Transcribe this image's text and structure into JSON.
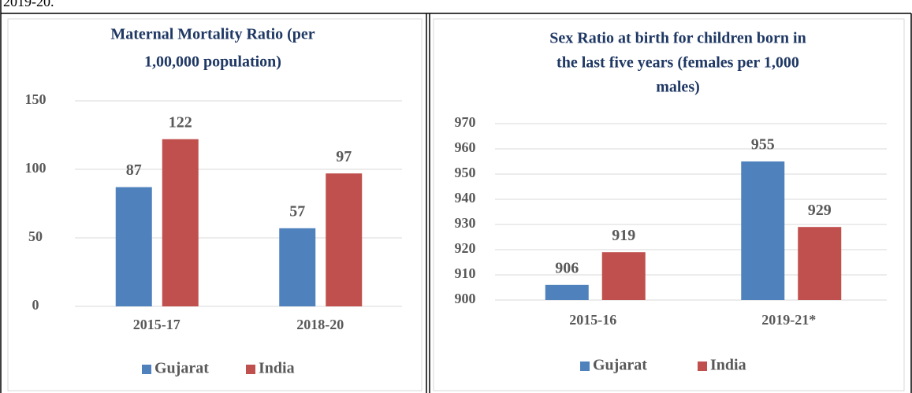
{
  "caption": "2019-20.",
  "chart_data": [
    {
      "type": "bar",
      "title": [
        "Maternal Mortality Ratio (per",
        "1,00,000 population)"
      ],
      "categories": [
        "2015-17",
        "2018-20"
      ],
      "series": [
        {
          "name": "Gujarat",
          "color": "#4f81bd",
          "values": [
            87,
            57
          ]
        },
        {
          "name": "India",
          "color": "#c0504d",
          "values": [
            122,
            97
          ]
        }
      ],
      "ylim": [
        0,
        150
      ],
      "yticks": [
        0,
        50,
        100,
        150
      ],
      "grid": true,
      "legend": "bottom"
    },
    {
      "type": "bar",
      "title": [
        "Sex Ratio at birth for children born in",
        "the last five years (females per 1,000",
        "males)"
      ],
      "categories": [
        "2015-16",
        "2019-21*"
      ],
      "series": [
        {
          "name": "Gujarat",
          "color": "#4f81bd",
          "values": [
            906,
            955
          ]
        },
        {
          "name": "India",
          "color": "#c0504d",
          "values": [
            919,
            929
          ]
        }
      ],
      "ylim": [
        900,
        970
      ],
      "yticks": [
        900,
        910,
        920,
        930,
        940,
        950,
        960,
        970
      ],
      "grid": true,
      "legend": "bottom"
    }
  ]
}
